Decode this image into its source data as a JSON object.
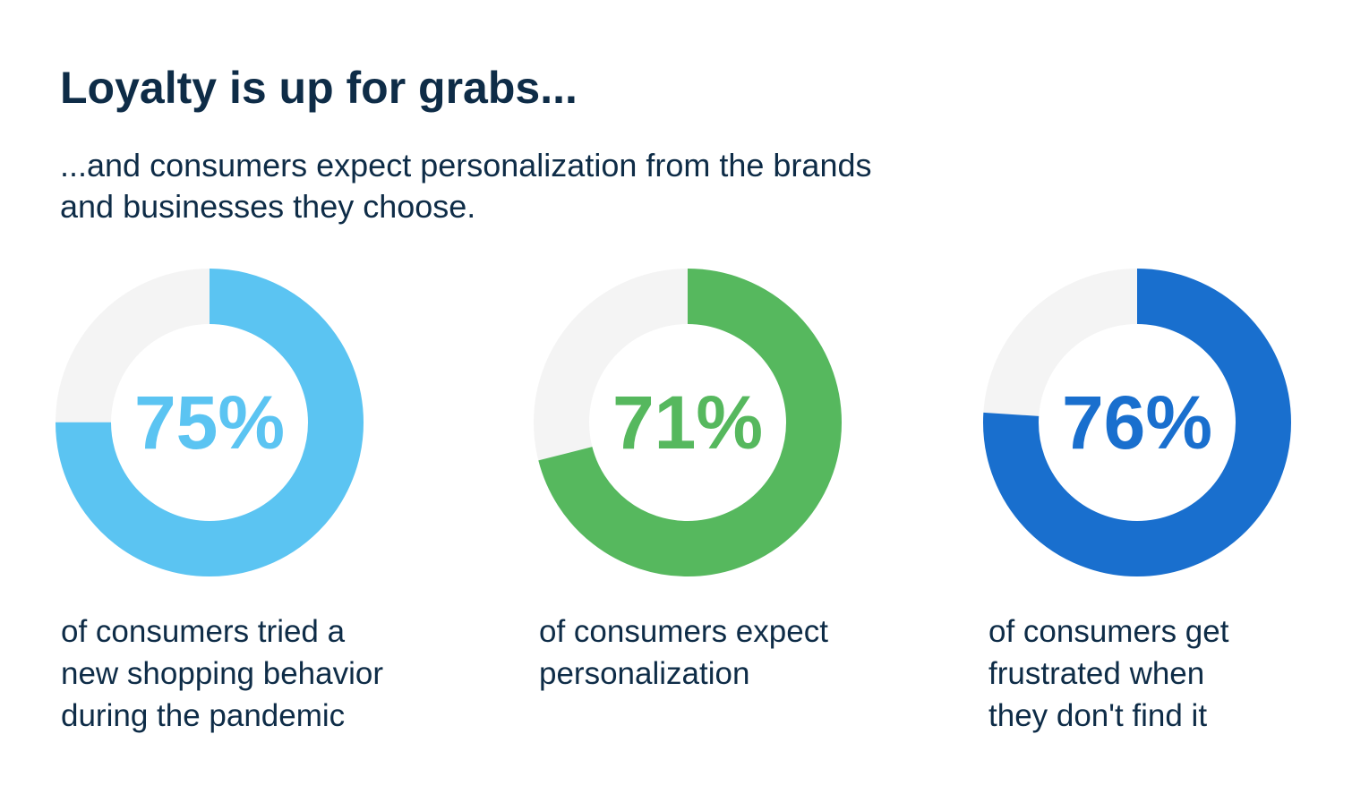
{
  "header": {
    "title": "Loyalty is up for grabs...",
    "subtitle_lines": [
      "...and consumers expect personalization from the brands",
      "and businesses they choose."
    ]
  },
  "colors": {
    "text": "#0e2c47",
    "track": "#f4f4f4"
  },
  "chart_data": [
    {
      "type": "pie",
      "value": 75,
      "label": "75%",
      "color": "#5bc4f2",
      "caption_lines": [
        "of consumers tried a",
        "new shopping behavior",
        "during the pandemic"
      ]
    },
    {
      "type": "pie",
      "value": 71,
      "label": "71%",
      "color": "#56b85e",
      "caption_lines": [
        "of consumers expect",
        "personalization"
      ]
    },
    {
      "type": "pie",
      "value": 76,
      "label": "76%",
      "color": "#196fce",
      "caption_lines": [
        "of consumers get",
        "frustrated when",
        "they don't find it"
      ]
    }
  ]
}
